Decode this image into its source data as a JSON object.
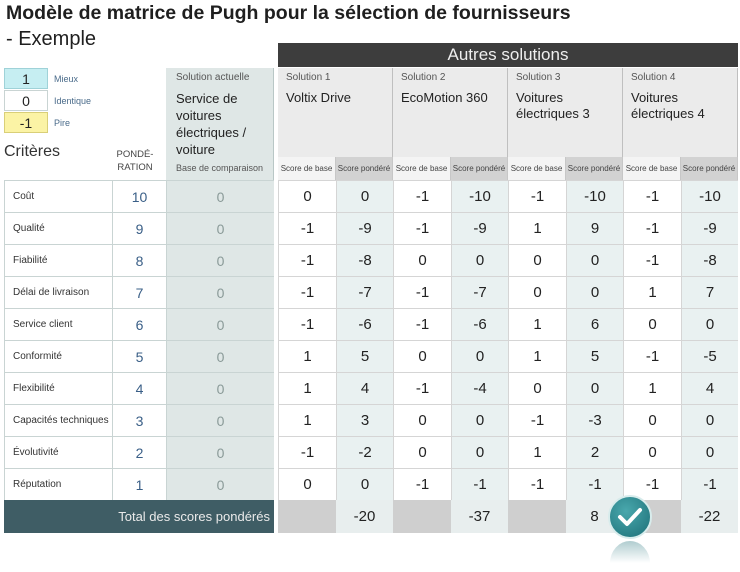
{
  "title": "Modèle de matrice de Pugh pour la sélection de fournisseurs",
  "subtitle": "- Exemple",
  "legend": [
    {
      "value": "1",
      "label": "Mieux",
      "color": "#c6eef2"
    },
    {
      "value": "0",
      "label": "Identique",
      "color": "#ffffff"
    },
    {
      "value": "-1",
      "label": "Pire",
      "color": "#fbf3a5"
    }
  ],
  "criteria_header": "Critères",
  "weight_header_line1": "PONDÉ-",
  "weight_header_line2": "RATION",
  "current": {
    "label": "Solution actuelle",
    "name": "Service de voitures électriques / voiture",
    "base_label": "Base de comparaison"
  },
  "others_header": "Autres solutions",
  "solutions": [
    {
      "label": "Solution 1",
      "name": "Voltix Drive"
    },
    {
      "label": "Solution 2",
      "name": "EcoMotion 360"
    },
    {
      "label": "Solution 3",
      "name": "Voitures électriques 3"
    },
    {
      "label": "Solution 4",
      "name": "Voitures électriques 4"
    }
  ],
  "sub_headers": {
    "base": "Score de base",
    "weighted": "Score pondéré"
  },
  "rows": [
    {
      "criterion": "Coût",
      "weight": "10",
      "current": "0",
      "scores": [
        "0",
        "0",
        "-1",
        "-10",
        "-1",
        "-10",
        "-1",
        "-10"
      ]
    },
    {
      "criterion": "Qualité",
      "weight": "9",
      "current": "0",
      "scores": [
        "-1",
        "-9",
        "-1",
        "-9",
        "1",
        "9",
        "-1",
        "-9"
      ]
    },
    {
      "criterion": "Fiabilité",
      "weight": "8",
      "current": "0",
      "scores": [
        "-1",
        "-8",
        "0",
        "0",
        "0",
        "0",
        "-1",
        "-8"
      ]
    },
    {
      "criterion": "Délai de livraison",
      "weight": "7",
      "current": "0",
      "scores": [
        "-1",
        "-7",
        "-1",
        "-7",
        "0",
        "0",
        "1",
        "7"
      ]
    },
    {
      "criterion": "Service client",
      "weight": "6",
      "current": "0",
      "scores": [
        "-1",
        "-6",
        "-1",
        "-6",
        "1",
        "6",
        "0",
        "0"
      ]
    },
    {
      "criterion": "Conformité",
      "weight": "5",
      "current": "0",
      "scores": [
        "1",
        "5",
        "0",
        "0",
        "1",
        "5",
        "-1",
        "-5"
      ]
    },
    {
      "criterion": "Flexibilité",
      "weight": "4",
      "current": "0",
      "scores": [
        "1",
        "4",
        "-1",
        "-4",
        "0",
        "0",
        "1",
        "4"
      ]
    },
    {
      "criterion": "Capacités techniques",
      "weight": "3",
      "current": "0",
      "scores": [
        "1",
        "3",
        "0",
        "0",
        "-1",
        "-3",
        "0",
        "0"
      ]
    },
    {
      "criterion": "Évolutivité",
      "weight": "2",
      "current": "0",
      "scores": [
        "-1",
        "-2",
        "0",
        "0",
        "1",
        "2",
        "0",
        "0"
      ]
    },
    {
      "criterion": "Réputation",
      "weight": "1",
      "current": "0",
      "scores": [
        "0",
        "0",
        "-1",
        "-1",
        "-1",
        "-1",
        "-1",
        "-1"
      ]
    }
  ],
  "total_label": "Total des scores pondérés",
  "totals": [
    "-20",
    "-37",
    "8",
    "-22"
  ],
  "best_solution_index": 2,
  "colors": {
    "dark_header": "#3d3d3d",
    "total_bar": "#3f5d65",
    "badge": "#1c6f77"
  }
}
